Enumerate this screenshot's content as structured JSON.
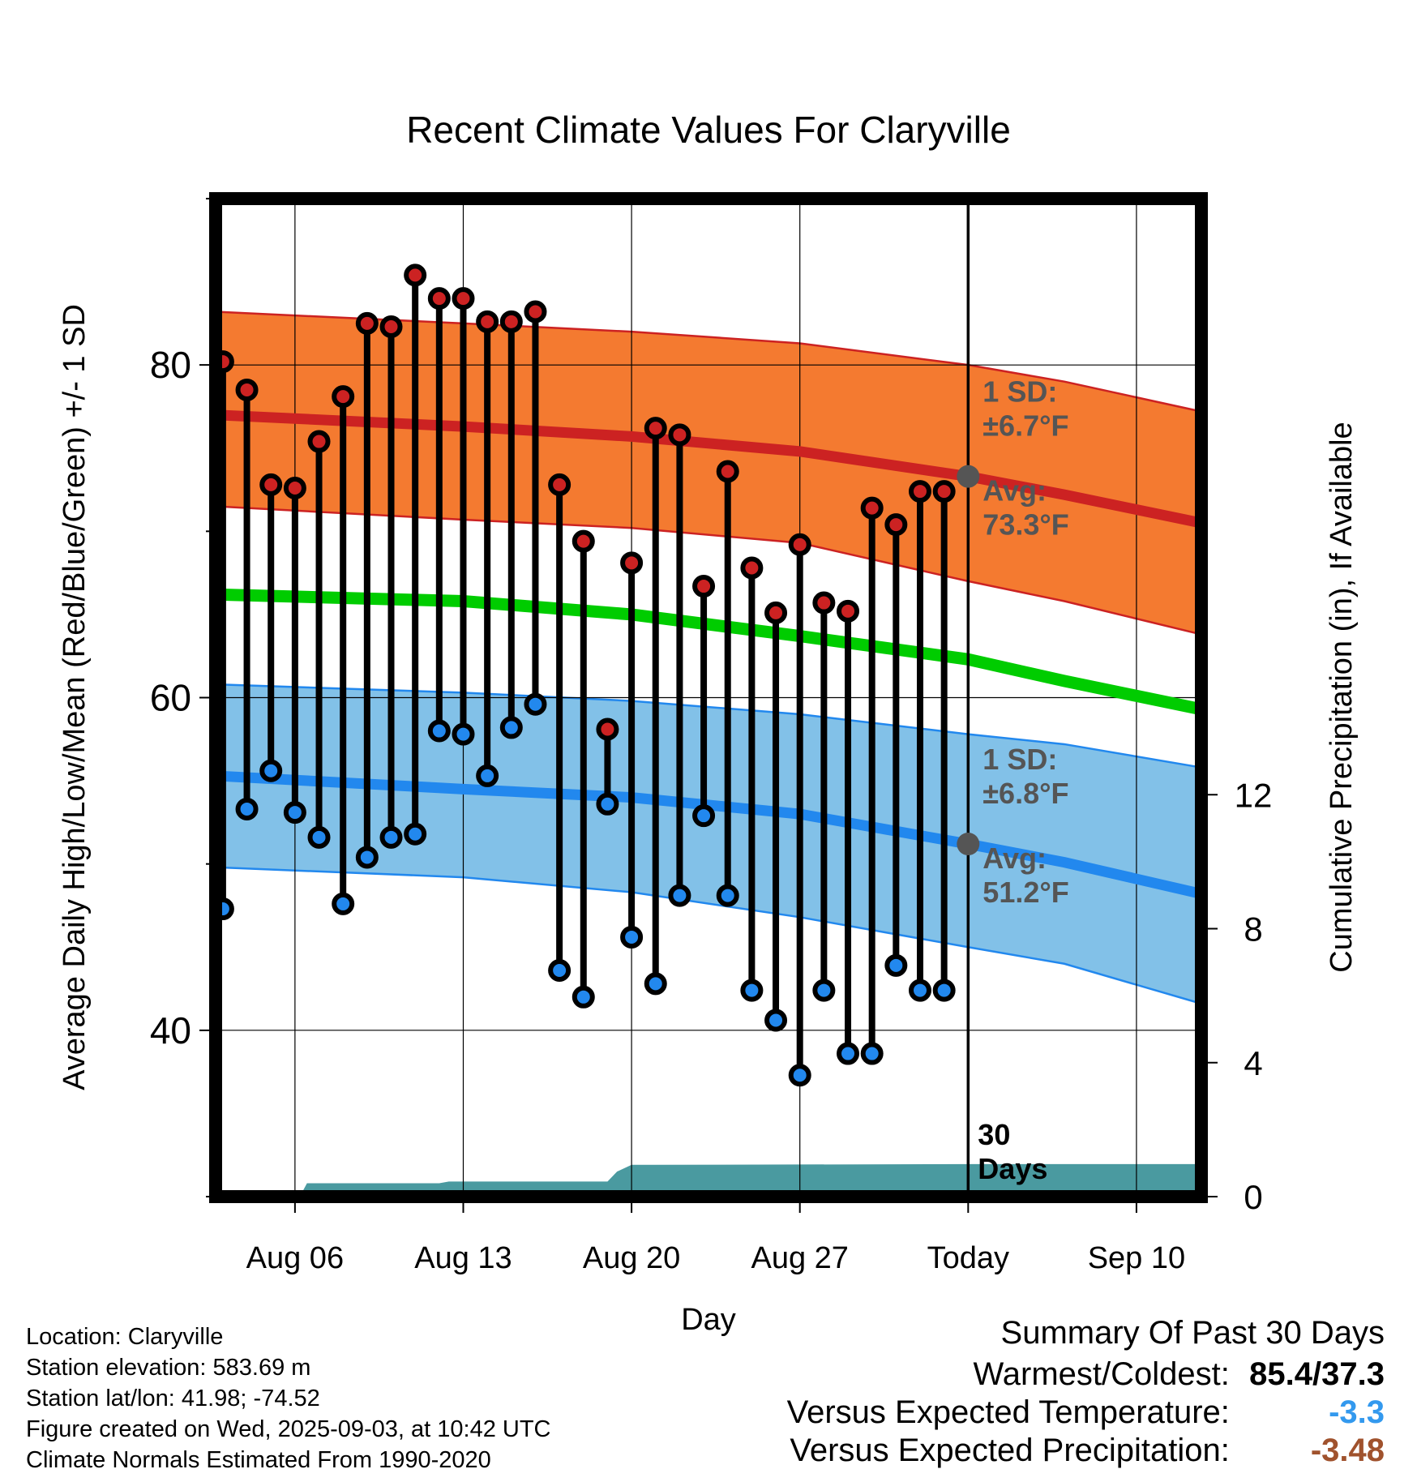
{
  "chart_data": {
    "type": "line",
    "title": "Recent Climate Values For Claryville",
    "xlabel": "Day",
    "ylabel": "Average Daily High/Low/Mean (Red/Blue/Green) +/- 1 SD",
    "y2label": "Cumulative Precipitation (in), If Available",
    "x_tick_labels": [
      "Aug 06",
      "Aug 13",
      "Aug 20",
      "Aug 27",
      "Today",
      "Sep 10"
    ],
    "x_tick_days": [
      6,
      13,
      20,
      27,
      34,
      41
    ],
    "x_range_days": [
      2.7,
      43.7
    ],
    "ylim": [
      30,
      90
    ],
    "y_ticks": [
      40,
      60,
      80
    ],
    "y_minor_ticks": [
      30,
      50,
      70,
      90
    ],
    "y2lim": [
      0,
      29.8
    ],
    "y2_ticks": [
      0,
      4,
      8,
      12
    ],
    "grid": true,
    "today_day": 34,
    "today_label": "30 Days",
    "normals": {
      "days": [
        2.7,
        13,
        20,
        27,
        34,
        38,
        43.7
      ],
      "high_avg": [
        77.0,
        76.3,
        75.7,
        74.8,
        73.3,
        72.2,
        70.5
      ],
      "high_upper": [
        83.2,
        82.5,
        82.0,
        81.3,
        80.0,
        79.0,
        77.2
      ],
      "high_lower": [
        71.5,
        70.7,
        70.2,
        69.3,
        67.0,
        65.8,
        63.8
      ],
      "mean": [
        66.2,
        65.8,
        65.0,
        63.7,
        62.3,
        61.0,
        59.3
      ],
      "low_avg": [
        55.3,
        54.5,
        54.0,
        53.0,
        51.2,
        50.1,
        48.2
      ],
      "low_upper": [
        60.8,
        60.3,
        59.8,
        59.0,
        57.8,
        57.2,
        55.8
      ],
      "low_lower": [
        49.8,
        49.2,
        48.3,
        46.8,
        45.0,
        44.0,
        41.6
      ]
    },
    "series": [
      {
        "name": "High",
        "color": "#cc2222",
        "x": [
          3,
          4,
          5,
          6,
          7,
          8,
          9,
          10,
          11,
          12,
          13,
          14,
          15,
          16,
          17,
          18,
          19,
          20,
          21,
          22,
          23,
          24,
          25,
          26,
          27,
          28,
          29,
          30,
          31,
          32,
          33
        ],
        "values": [
          80.2,
          78.5,
          72.8,
          72.6,
          75.4,
          78.1,
          82.5,
          82.3,
          85.4,
          84.0,
          84.0,
          82.6,
          82.6,
          83.2,
          72.8,
          69.4,
          58.1,
          68.1,
          76.2,
          75.8,
          66.7,
          73.6,
          67.8,
          65.1,
          69.2,
          65.7,
          65.2,
          71.4,
          70.4,
          72.4,
          72.4
        ]
      },
      {
        "name": "Low",
        "color": "#2288ee",
        "x": [
          3,
          4,
          5,
          6,
          7,
          8,
          9,
          10,
          11,
          12,
          13,
          14,
          15,
          16,
          17,
          18,
          19,
          20,
          21,
          22,
          23,
          24,
          25,
          26,
          27,
          28,
          29,
          30,
          31,
          32,
          33
        ],
        "values": [
          47.3,
          53.3,
          55.6,
          53.1,
          51.6,
          47.6,
          50.4,
          51.6,
          51.8,
          58.0,
          57.8,
          55.3,
          58.2,
          59.6,
          43.6,
          42.0,
          53.6,
          45.6,
          42.8,
          48.1,
          52.9,
          48.1,
          42.4,
          40.6,
          37.3,
          42.4,
          38.6,
          38.6,
          43.9,
          42.4,
          42.4
        ]
      }
    ],
    "precipitation": {
      "name": "Cumulative Precipitation",
      "color": "#4a9aa0",
      "x": [
        2.7,
        3.2,
        3.7,
        4.2,
        4.7,
        5.2,
        5.7,
        6.2,
        6.5,
        12,
        12.4,
        19,
        19.4,
        20,
        21,
        34,
        43.7
      ],
      "values": [
        0,
        0,
        0,
        0,
        0,
        0,
        0,
        0,
        0.4,
        0.4,
        0.45,
        0.45,
        0.75,
        0.95,
        0.95,
        0.97,
        0.97
      ]
    },
    "annotations": {
      "high": {
        "sd_label": "1 SD:",
        "sd_value": "±6.7°F",
        "avg_label": "Avg:",
        "avg_value": "73.3°F"
      },
      "low": {
        "sd_label": "1 SD:",
        "sd_value": "±6.8°F",
        "avg_label": "Avg:",
        "avg_value": "51.2°F"
      }
    },
    "colors": {
      "high_band": "#f47a30",
      "high_line": "#cc2222",
      "mean_line": "#00cc00",
      "low_band": "#82c1e8",
      "low_line": "#2288ee",
      "precip": "#4a9aa0",
      "annotation": "#555555"
    }
  },
  "info": {
    "location": "Location: Claryville",
    "elevation": "Station elevation: 583.69 m",
    "latlon": "Station lat/lon: 41.98; -74.52",
    "created": "Figure created on Wed, 2025-09-03, at 10:42 UTC",
    "normals": "Climate Normals Estimated From 1990-2020"
  },
  "summary": {
    "title": "Summary Of Past 30 Days",
    "warm_cold_label": "Warmest/Coldest:",
    "warm_cold_value": "85.4/37.3",
    "temp_label": "Versus Expected Temperature:",
    "temp_value": "-3.3",
    "temp_color": "#3399ee",
    "precip_label": "Versus Expected Precipitation:",
    "precip_value": "-3.48",
    "precip_color": "#a0522d"
  }
}
